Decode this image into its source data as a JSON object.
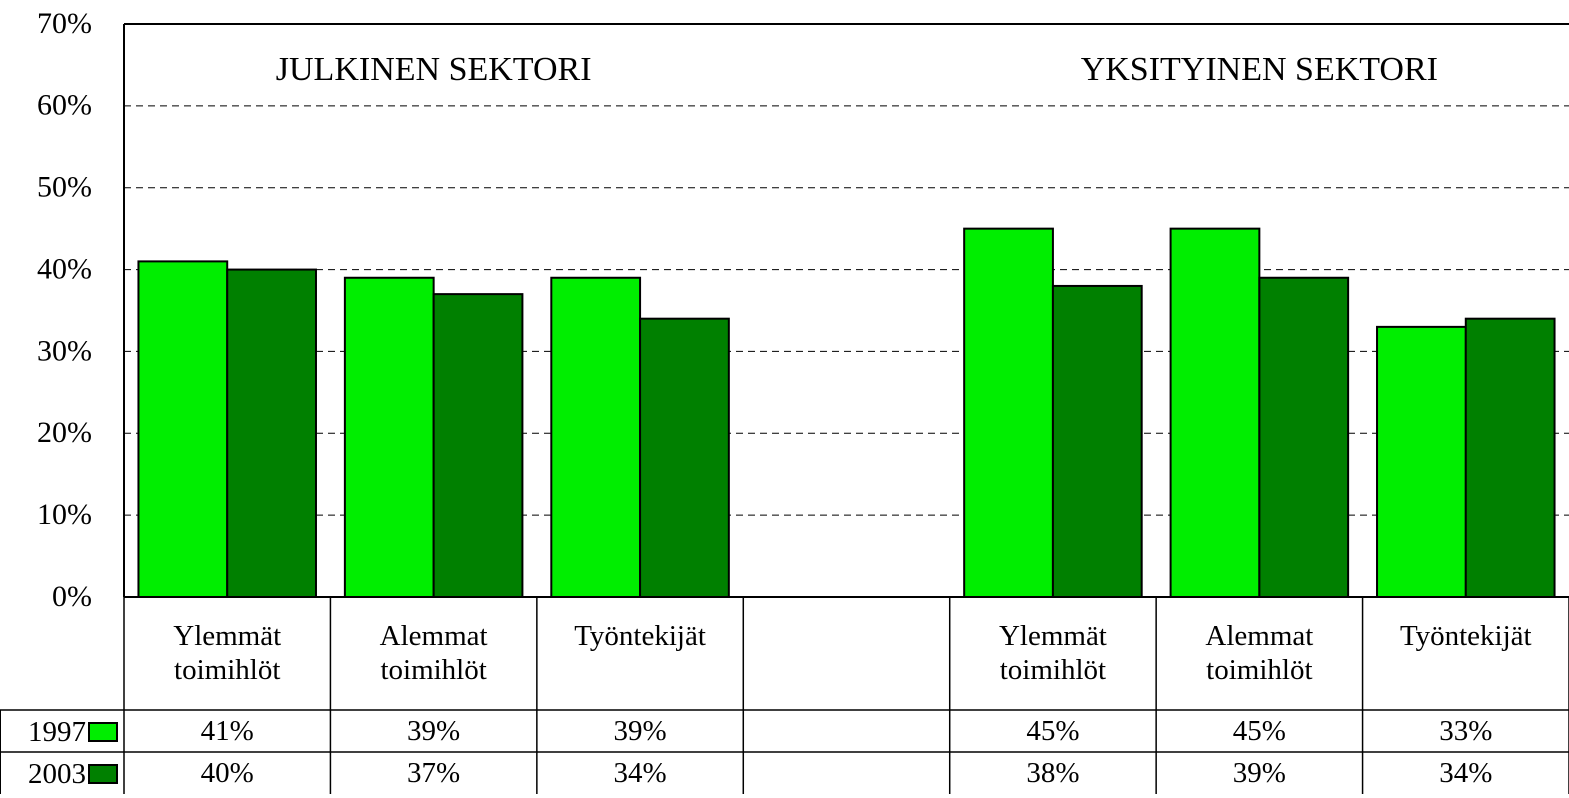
{
  "chart_data": {
    "type": "bar",
    "annotations": [
      "JULKINEN SEKTORI",
      "YKSITYINEN SEKTORI"
    ],
    "categories": [
      "Ylemmät toimihlöt",
      "Alemmat toimihlöt",
      "Työntekijät",
      null,
      "Ylemmät toimihlöt",
      "Alemmat toimihlöt",
      "Työntekijät"
    ],
    "series": [
      {
        "name": "1997",
        "color": "#00ee00",
        "values": [
          41,
          39,
          39,
          null,
          45,
          45,
          33
        ],
        "value_labels": [
          "41%",
          "39%",
          "39%",
          null,
          "45%",
          "45%",
          "33%"
        ]
      },
      {
        "name": "2003",
        "color": "#008000",
        "values": [
          40,
          37,
          34,
          null,
          38,
          39,
          34
        ],
        "value_labels": [
          "40%",
          "37%",
          "34%",
          null,
          "38%",
          "39%",
          "34%"
        ]
      }
    ],
    "ylim": [
      0,
      70
    ],
    "yticks": [
      {
        "value": 0,
        "label": "0%"
      },
      {
        "value": 10,
        "label": "10%"
      },
      {
        "value": 20,
        "label": "20%"
      },
      {
        "value": 30,
        "label": "30%"
      },
      {
        "value": 40,
        "label": "40%"
      },
      {
        "value": 50,
        "label": "50%"
      },
      {
        "value": 60,
        "label": "60%"
      },
      {
        "value": 70,
        "label": "70%"
      }
    ],
    "grid": true
  }
}
